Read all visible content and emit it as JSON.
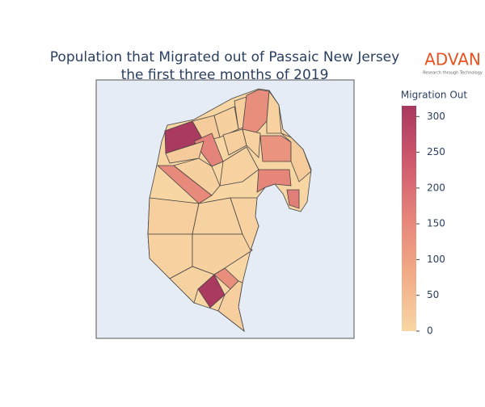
{
  "chart_data": {
    "type": "choropleth",
    "title": "Population that Migrated out of Passaic New Jersey",
    "subtitle": "the first three months of 2019",
    "colorbar_title": "Migration Out",
    "logo": "ADVAN",
    "logo_tagline": "Research through Technology",
    "values": [
      310,
      20,
      12,
      15,
      140,
      10,
      160,
      20,
      15,
      10,
      130,
      20,
      155,
      170,
      150,
      12,
      10,
      15,
      8,
      310,
      140,
      10,
      12,
      8,
      10,
      15
    ],
    "colorscale": [
      "#f8d6a4",
      "#f1ac86",
      "#e6857a",
      "#cf5a6d",
      "#a8385f"
    ],
    "clim": [
      0,
      315
    ],
    "cticks": [
      0,
      50,
      100,
      150,
      200,
      250,
      300
    ]
  }
}
